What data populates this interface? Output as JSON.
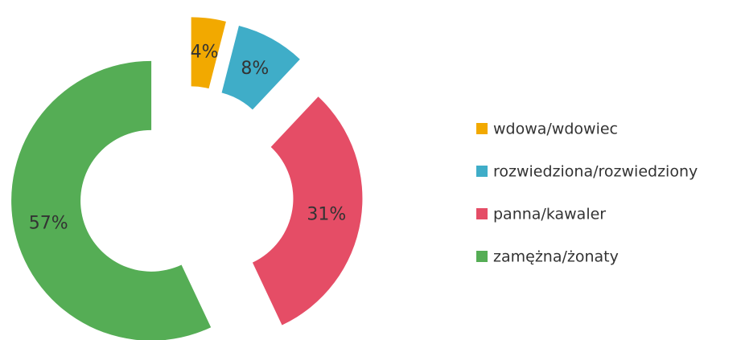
{
  "chart_data": {
    "type": "pie",
    "categories": [
      "wdowa/wdowiec",
      "rozwiedziona/rozwiedziony",
      "panna/kawaler",
      "zamężna/żonaty"
    ],
    "values": [
      4,
      8,
      31,
      57
    ],
    "value_labels": [
      "4%",
      "8%",
      "31%",
      "57%"
    ],
    "colors": [
      "#f2a900",
      "#3fadc8",
      "#e54d66",
      "#55ad55"
    ],
    "donut": true,
    "exploded": true,
    "legend": "right"
  }
}
